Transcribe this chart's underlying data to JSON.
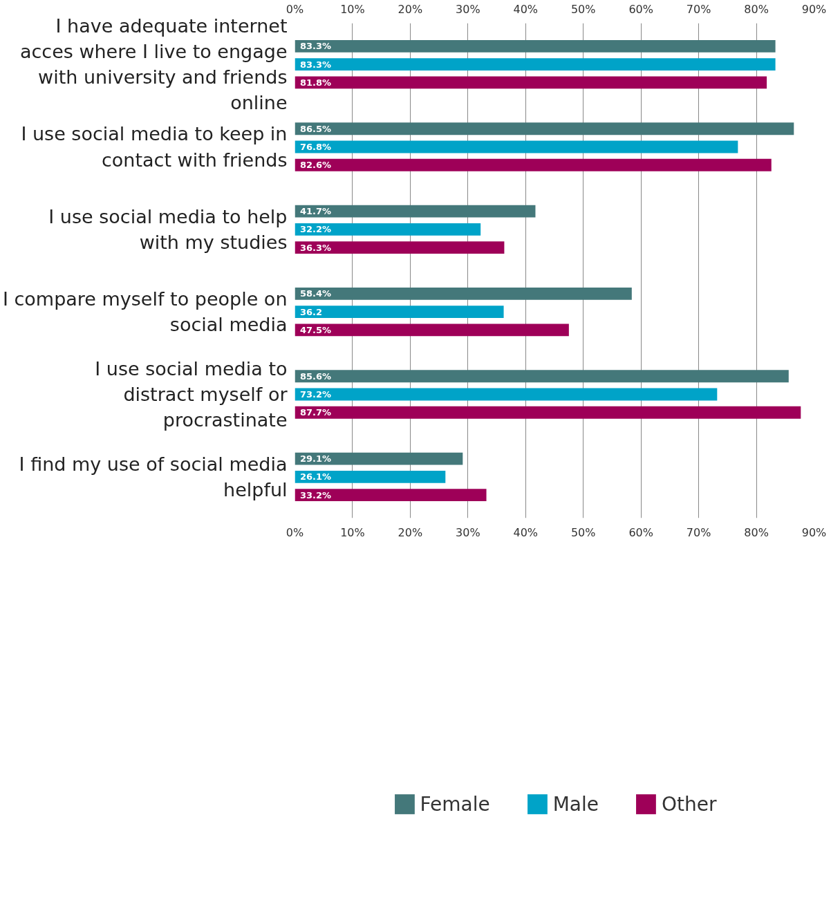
{
  "chart_data": {
    "type": "bar",
    "orientation": "horizontal",
    "categories": [
      "I have adequate internet acces where I live to engage with university and friends online",
      "I use social media to keep in contact with friends",
      "I use social media to help with my studies",
      "I compare myself to people on social media",
      "I use social media to distract myself or procrastinate",
      "I find my use of social media helpful"
    ],
    "series": [
      {
        "name": "Female",
        "color": "#44787a",
        "values": [
          83.3,
          86.5,
          41.7,
          58.4,
          85.6,
          29.1
        ],
        "value_labels": [
          "83.3%",
          "86.5%",
          "41.7%",
          "58.4%",
          "85.6%",
          "29.1%"
        ]
      },
      {
        "name": "Male",
        "color": "#00a3c8",
        "values": [
          83.3,
          76.8,
          32.2,
          36.2,
          73.2,
          26.1
        ],
        "value_labels": [
          "83.3%",
          "76.8%",
          "32.2%",
          "36.2",
          "73.2%",
          "26.1%"
        ]
      },
      {
        "name": "Other",
        "color": "#9e0058",
        "values": [
          81.8,
          82.6,
          36.3,
          47.5,
          87.7,
          33.2
        ],
        "value_labels": [
          "81.8%",
          "82.6%",
          "36.3%",
          "47.5%",
          "87.7%",
          "33.2%"
        ]
      }
    ],
    "xlim": [
      0,
      90
    ],
    "xticks": [
      {
        "value": 0,
        "label": "0%"
      },
      {
        "value": 10,
        "label": "10%"
      },
      {
        "value": 20,
        "label": "20%"
      },
      {
        "value": 30,
        "label": "30%"
      },
      {
        "value": 40,
        "label": "40%"
      },
      {
        "value": 50,
        "label": "50%"
      },
      {
        "value": 60,
        "label": "60%"
      },
      {
        "value": 70,
        "label": "70%"
      },
      {
        "value": 80,
        "label": "80%"
      },
      {
        "value": 90,
        "label": "90%"
      }
    ],
    "x2lim": [
      0,
      90
    ],
    "x2ticks": [
      {
        "value": 0,
        "label": "0%"
      },
      {
        "value": 10,
        "label": "10%"
      },
      {
        "value": 20,
        "label": "20%"
      },
      {
        "value": 30,
        "label": "30%"
      },
      {
        "value": 40,
        "label": "40%"
      },
      {
        "value": 50,
        "label": "50%"
      },
      {
        "value": 60,
        "label": "60%"
      },
      {
        "value": 70,
        "label": "70%"
      },
      {
        "value": 80,
        "label": "80%"
      },
      {
        "value": 90,
        "label": "90%"
      }
    ],
    "grid": "x",
    "legend": "bottom"
  }
}
